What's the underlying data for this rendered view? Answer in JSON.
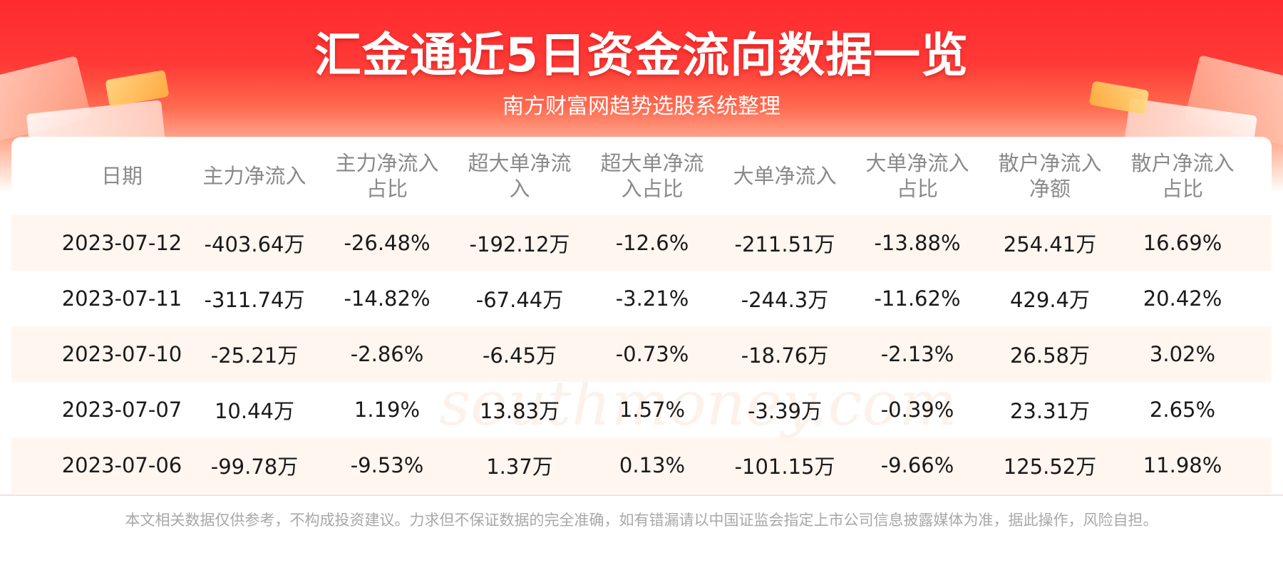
{
  "header": {
    "title": "汇金通近5日资金流向数据一览",
    "subtitle": "南方财富网趋势选股系统整理"
  },
  "table": {
    "columns": [
      "日期",
      "主力净流入",
      "主力净流入占比",
      "超大单净流入",
      "超大单净流入占比",
      "大单净流入",
      "大单净流入占比",
      "散户净流入净额",
      "散户净流入占比"
    ],
    "rows": [
      [
        "2023-07-12",
        "-403.64万",
        "-26.48%",
        "-192.12万",
        "-12.6%",
        "-211.51万",
        "-13.88%",
        "254.41万",
        "16.69%"
      ],
      [
        "2023-07-11",
        "-311.74万",
        "-14.82%",
        "-67.44万",
        "-3.21%",
        "-244.3万",
        "-11.62%",
        "429.4万",
        "20.42%"
      ],
      [
        "2023-07-10",
        "-25.21万",
        "-2.86%",
        "-6.45万",
        "-0.73%",
        "-18.76万",
        "-2.13%",
        "26.58万",
        "3.02%"
      ],
      [
        "2023-07-07",
        "10.44万",
        "1.19%",
        "13.83万",
        "1.57%",
        "-3.39万",
        "-0.39%",
        "23.31万",
        "2.65%"
      ],
      [
        "2023-07-06",
        "-99.78万",
        "-9.53%",
        "1.37万",
        "0.13%",
        "-101.15万",
        "-9.66%",
        "125.52万",
        "11.98%"
      ]
    ]
  },
  "watermark": {
    "cn": "南方财富网",
    "en": "southmoney.com"
  },
  "footer": {
    "disclaimer": "本文相关数据仅供参考，不构成投资建议。力求但不保证数据的完全准确，如有错漏请以中国证监会指定上市公司信息披露媒体为准，据此操作，风险自担。"
  },
  "colors": {
    "banner_red": "#ff2a2f",
    "row_shade": "#fff6ef",
    "header_text": "#8a8a8a",
    "cell_text": "#1a1a1a"
  }
}
